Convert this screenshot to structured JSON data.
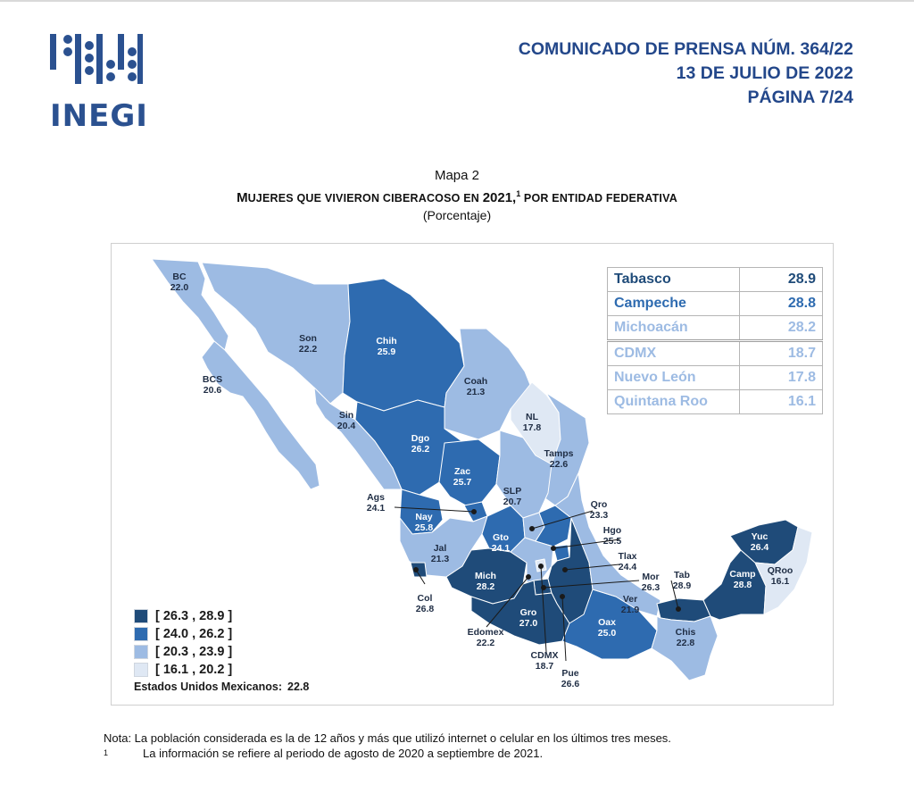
{
  "header": {
    "logo_text": "INEGI",
    "line1": "COMUNICADO DE PRENSA NÚM. 364/22",
    "line2": "13 DE JULIO DE 2022",
    "line3": "PÁGINA 7/24"
  },
  "map": {
    "number": "Mapa 2",
    "title_part1": "M",
    "title_part2": "UJERES QUE VIVIERON CIBERACOSO EN ",
    "title_year": "2021,",
    "title_sup": "1",
    "title_part3": " POR ENTIDAD FEDERATIVA",
    "subtitle": "(Porcentaje)"
  },
  "colors": {
    "class1": "#1f4b79",
    "class2": "#2e6bb0",
    "class3": "#9dbbe3",
    "class4": "#dfe8f4",
    "sea_outline": "#c8cfd8"
  },
  "ranking": {
    "top": [
      {
        "state": "Tabasco",
        "value": "28.9"
      },
      {
        "state": "Campeche",
        "value": "28.8"
      },
      {
        "state": "Michoacán",
        "value": "28.2"
      }
    ],
    "bottom": [
      {
        "state": "CDMX",
        "value": "18.7"
      },
      {
        "state": "Nuevo León",
        "value": "17.8"
      },
      {
        "state": "Quintana Roo",
        "value": "16.1"
      }
    ]
  },
  "legend": [
    {
      "label": "[ 26.3 , 28.9 ]",
      "class": "class1"
    },
    {
      "label": "[ 24.0 , 26.2 ]",
      "class": "class2"
    },
    {
      "label": "[ 20.3 , 23.9 ]",
      "class": "class3"
    },
    {
      "label": "[ 16.1 , 20.2 ]",
      "class": "class4"
    }
  ],
  "national": {
    "label": "Estados Unidos Mexicanos:",
    "value": "22.8"
  },
  "states": [
    {
      "abbr": "BC",
      "value": "22.0",
      "class": "class3"
    },
    {
      "abbr": "BCS",
      "value": "20.6",
      "class": "class3"
    },
    {
      "abbr": "Son",
      "value": "22.2",
      "class": "class3"
    },
    {
      "abbr": "Chih",
      "value": "25.9",
      "class": "class2"
    },
    {
      "abbr": "Coah",
      "value": "21.3",
      "class": "class3"
    },
    {
      "abbr": "NL",
      "value": "17.8",
      "class": "class4"
    },
    {
      "abbr": "Tamps",
      "value": "22.6",
      "class": "class3"
    },
    {
      "abbr": "Sin",
      "value": "20.4",
      "class": "class3"
    },
    {
      "abbr": "Dgo",
      "value": "26.2",
      "class": "class2"
    },
    {
      "abbr": "Zac",
      "value": "25.7",
      "class": "class2"
    },
    {
      "abbr": "SLP",
      "value": "20.7",
      "class": "class3"
    },
    {
      "abbr": "Ags",
      "value": "24.1",
      "class": "class2"
    },
    {
      "abbr": "Nay",
      "value": "25.8",
      "class": "class2"
    },
    {
      "abbr": "Jal",
      "value": "21.3",
      "class": "class3"
    },
    {
      "abbr": "Gto",
      "value": "24.1",
      "class": "class2"
    },
    {
      "abbr": "Qro",
      "value": "23.3",
      "class": "class3"
    },
    {
      "abbr": "Hgo",
      "value": "25.5",
      "class": "class2"
    },
    {
      "abbr": "Col",
      "value": "26.8",
      "class": "class1"
    },
    {
      "abbr": "Mich",
      "value": "28.2",
      "class": "class1"
    },
    {
      "abbr": "Edomex",
      "value": "22.2",
      "class": "class3"
    },
    {
      "abbr": "CDMX",
      "value": "18.7",
      "class": "class4"
    },
    {
      "abbr": "Tlax",
      "value": "24.4",
      "class": "class2"
    },
    {
      "abbr": "Mor",
      "value": "26.3",
      "class": "class1"
    },
    {
      "abbr": "Pue",
      "value": "26.6",
      "class": "class1"
    },
    {
      "abbr": "Gro",
      "value": "27.0",
      "class": "class1"
    },
    {
      "abbr": "Oax",
      "value": "25.0",
      "class": "class2"
    },
    {
      "abbr": "Ver",
      "value": "21.9",
      "class": "class3"
    },
    {
      "abbr": "Tab",
      "value": "28.9",
      "class": "class1"
    },
    {
      "abbr": "Chis",
      "value": "22.8",
      "class": "class3"
    },
    {
      "abbr": "Camp",
      "value": "28.8",
      "class": "class1"
    },
    {
      "abbr": "Yuc",
      "value": "26.4",
      "class": "class1"
    },
    {
      "abbr": "QRoo",
      "value": "16.1",
      "class": "class4"
    }
  ],
  "notes": {
    "nota": "Nota:  La población considerada es la de 12 años y más que utilizó internet o celular en los últimos tres meses.",
    "sup": "1",
    "footnote": "La información se refiere al periodo de agosto de 2020 a septiembre de 2021."
  }
}
